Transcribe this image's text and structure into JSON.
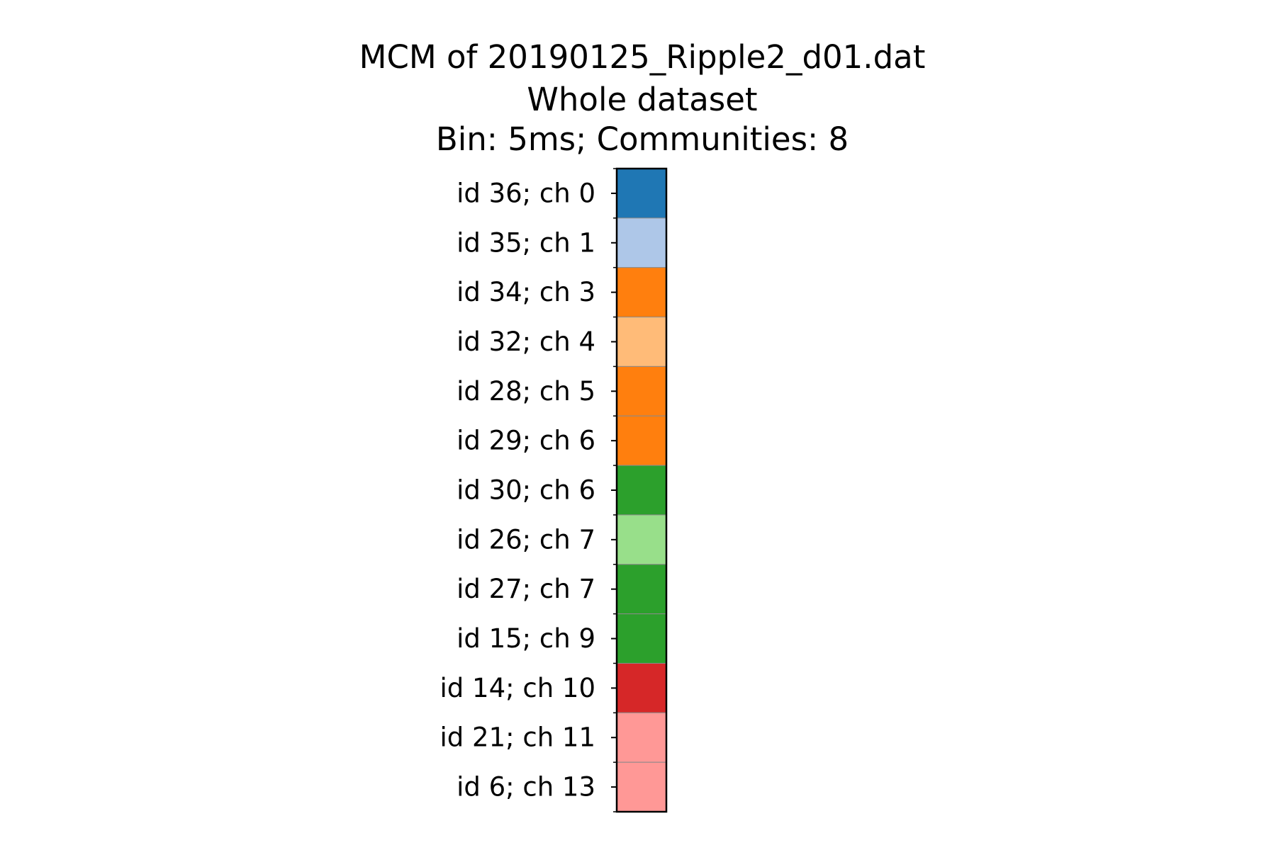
{
  "chart_data": {
    "type": "heatmap",
    "title": "MCM of 20190125_Ripple2_d01.dat",
    "subtitle": "Whole dataset",
    "subtitle2": "Bin: 5ms; Communities: 8",
    "xlabel": "",
    "ylabel": "",
    "grid": false,
    "rows": [
      {
        "label": "id 36; ch 0",
        "color": "#1f77b4"
      },
      {
        "label": "id 35; ch 1",
        "color": "#aec7e8"
      },
      {
        "label": "id 34; ch 3",
        "color": "#ff7f0e"
      },
      {
        "label": "id 32; ch 4",
        "color": "#ffbb78"
      },
      {
        "label": "id 28; ch 5",
        "color": "#ff7f0e"
      },
      {
        "label": "id 29; ch 6",
        "color": "#ff7f0e"
      },
      {
        "label": "id 30; ch 6",
        "color": "#2ca02c"
      },
      {
        "label": "id 26; ch 7",
        "color": "#98df8a"
      },
      {
        "label": "id 27; ch 7",
        "color": "#2ca02c"
      },
      {
        "label": "id 15; ch 9",
        "color": "#2ca02c"
      },
      {
        "label": "id 14; ch 10",
        "color": "#d62728"
      },
      {
        "label": "id 21; ch 11",
        "color": "#ff9896"
      },
      {
        "label": "id 6; ch 13",
        "color": "#ff9896"
      }
    ]
  }
}
